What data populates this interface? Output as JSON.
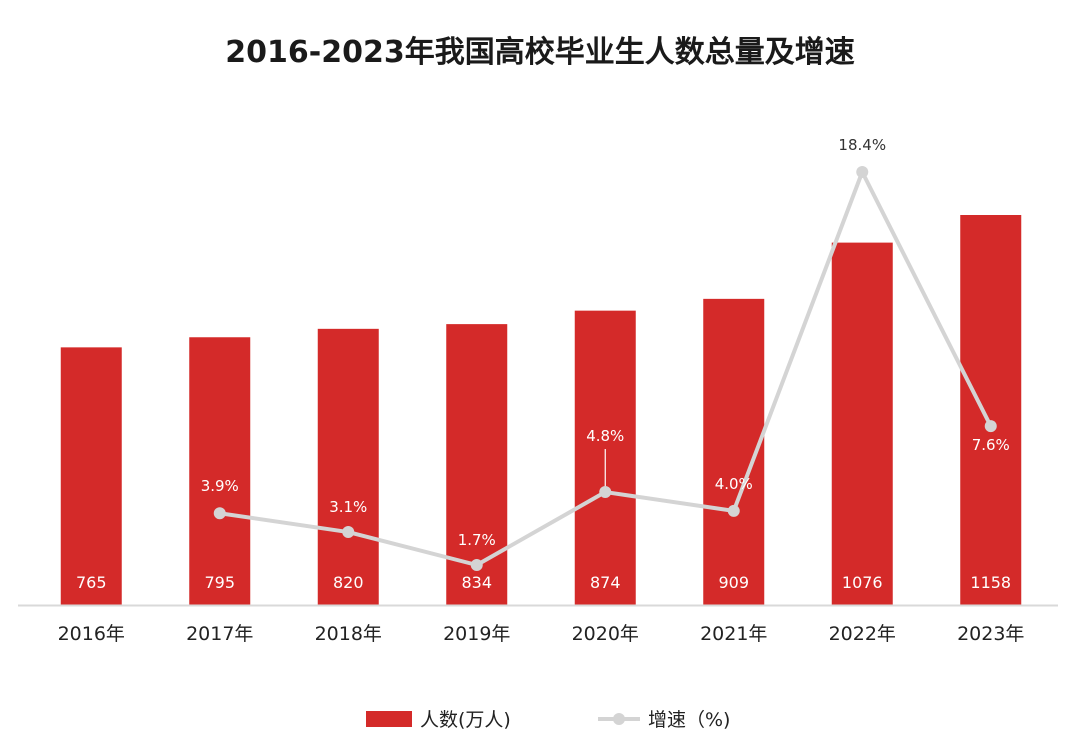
{
  "chart_data": {
    "type": "bar",
    "title": "2016-2023年我国高校毕业生人数总量及增速",
    "xlabel": "",
    "ylabel": "",
    "categories": [
      "2016年",
      "2017年",
      "2018年",
      "2019年",
      "2020年",
      "2021年",
      "2022年",
      "2023年"
    ],
    "series": [
      {
        "name": "人数(万人)",
        "type": "bar",
        "color": "#d42a29",
        "values": [
          765,
          795,
          820,
          834,
          874,
          909,
          1076,
          1158
        ],
        "labels": [
          "765",
          "795",
          "820",
          "834",
          "874",
          "909",
          "1076",
          "1158"
        ]
      },
      {
        "name": "增速（%)",
        "type": "line",
        "color": "#d4d4d4",
        "values": [
          null,
          3.9,
          3.1,
          1.7,
          4.8,
          4.0,
          18.4,
          7.6
        ],
        "labels": [
          "",
          "3.9%",
          "3.1%",
          "1.7%",
          "4.8%",
          "4.0%",
          "18.4%",
          "7.6%"
        ]
      }
    ],
    "ylim": [
      0,
      1400
    ],
    "y2lim": [
      -0.8,
      20
    ],
    "grid": false,
    "legend_position": "bottom-center"
  }
}
